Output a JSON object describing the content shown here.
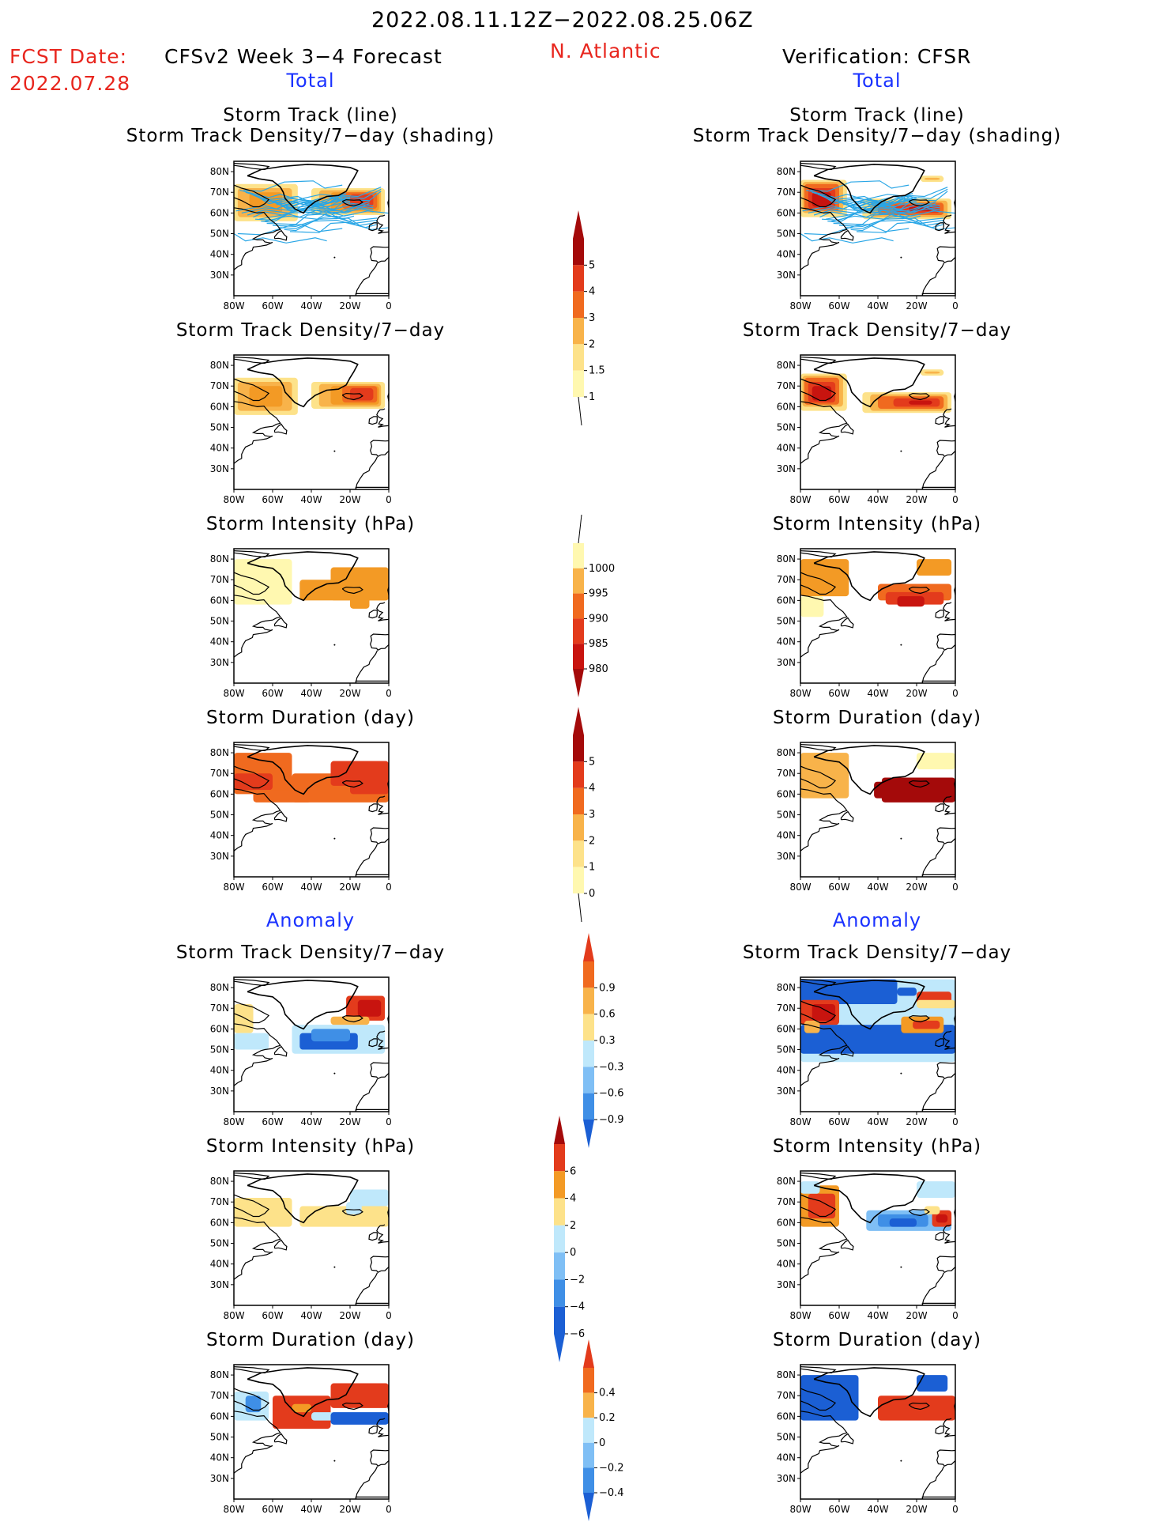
{
  "header": {
    "date_range": "2022.08.11.12Z−2022.08.25.06Z",
    "fcst_date_label": "FCST Date:",
    "fcst_date_value": "2022.07.28",
    "model": "CFSv2 Week 3−4 Forecast",
    "region": "N. Atlantic",
    "verification": "Verification: CFSR"
  },
  "sections": {
    "total_left": "Total",
    "total_right": "Total",
    "anomaly_left": "Anomaly",
    "anomaly_right": "Anomaly"
  },
  "panel_titles": {
    "track_line": "Storm Track (line)",
    "track_shading": "Storm Track Density/7−day (shading)",
    "density": "Storm Track Density/7−day",
    "intensity": "Storm Intensity (hPa)",
    "duration": "Storm Duration (day)"
  },
  "axes": {
    "lat_ticks": [
      "80N",
      "70N",
      "60N",
      "50N",
      "40N",
      "30N"
    ],
    "lon_ticks": [
      "80W",
      "60W",
      "40W",
      "20W",
      "0"
    ]
  },
  "colorbars": {
    "density_total": [
      "1",
      "1.5",
      "2",
      "3",
      "4",
      "5"
    ],
    "intensity_total": [
      "1000",
      "995",
      "990",
      "985",
      "980"
    ],
    "duration_total": [
      "0",
      "1",
      "2",
      "3",
      "4",
      "5"
    ],
    "density_anomaly": [
      "−0.9",
      "−0.6",
      "−0.3",
      "0.3",
      "0.6",
      "0.9"
    ],
    "intensity_anomaly": [
      "−6",
      "−4",
      "−2",
      "0",
      "2",
      "4",
      "6"
    ],
    "duration_anomaly": [
      "−0.4",
      "−0.2",
      "0",
      "0.2",
      "0.4"
    ]
  },
  "colors": {
    "yellow1": "#fff8b0",
    "yellow2": "#fde28a",
    "orange1": "#f8b34a",
    "orange2": "#f39a25",
    "orange3": "#f06a1f",
    "red1": "#e33b1c",
    "red2": "#c8140f",
    "darkred": "#a40a0a",
    "blue_light": "#bfe8fb",
    "blue_mid": "#7fbff5",
    "blue_mid2": "#3f8fe6",
    "blue_dark": "#1b5fd4",
    "track_line": "#29a6e6"
  }
}
